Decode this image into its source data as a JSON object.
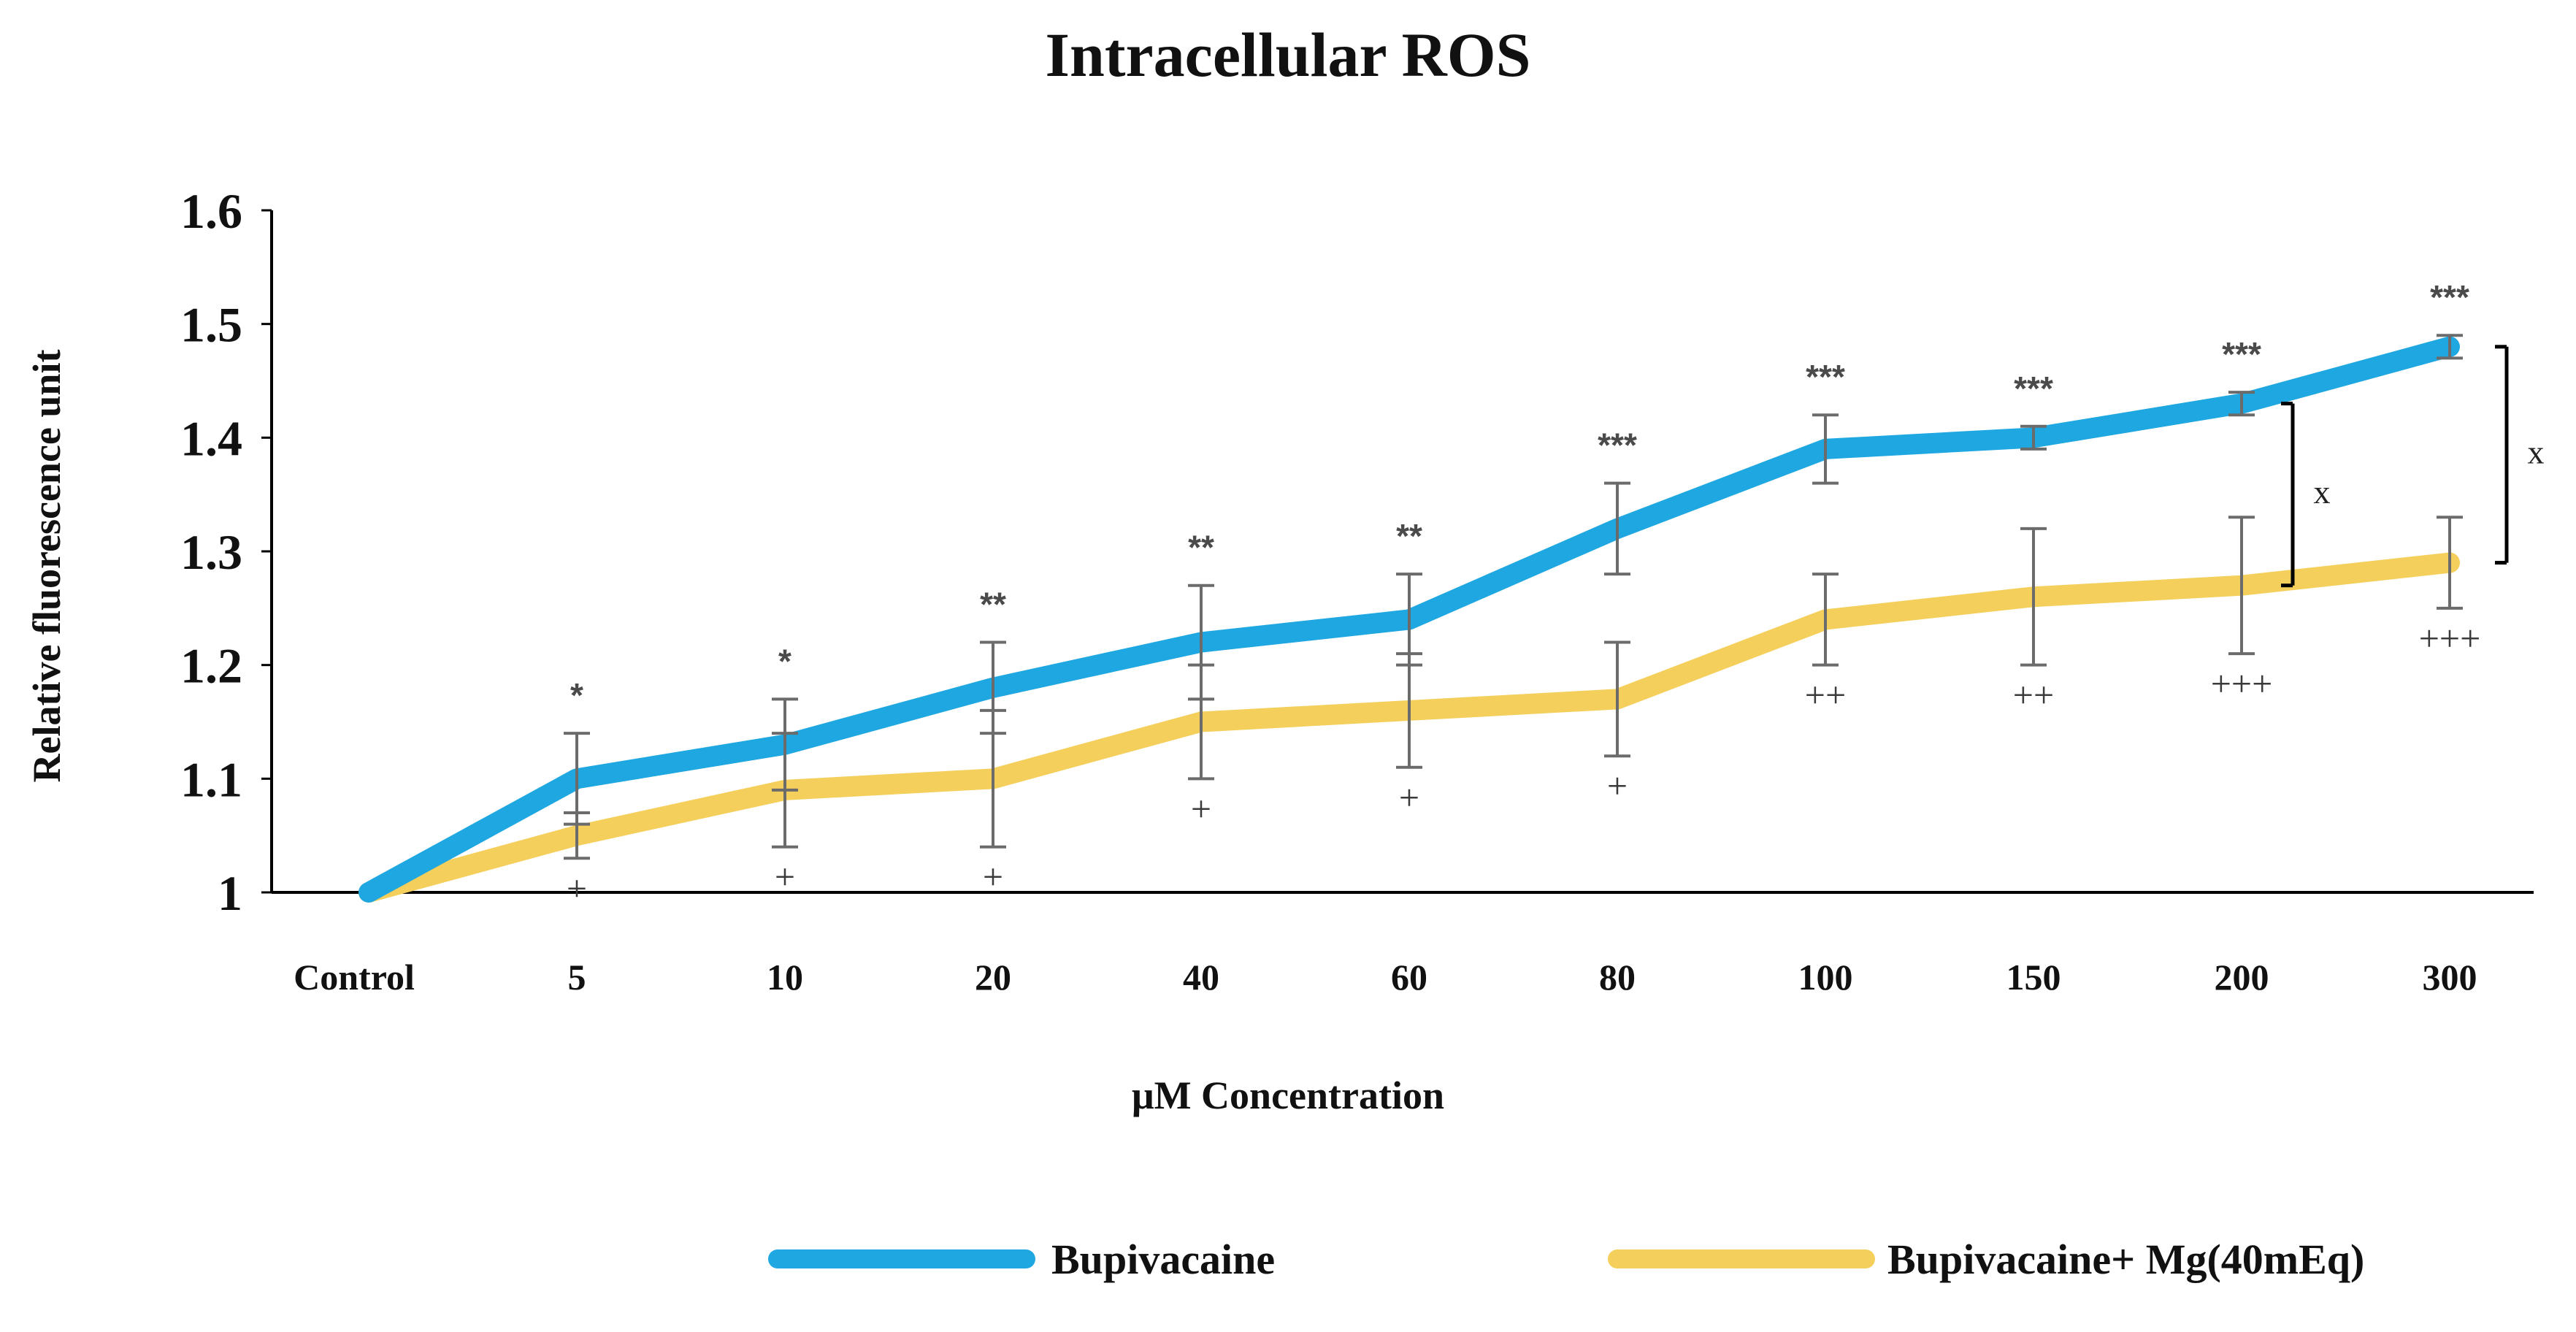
{
  "chart_data": {
    "type": "line",
    "title": "Intracellular ROS",
    "xlabel": "μM Concentration",
    "ylabel": "Relative fluorescence unit",
    "categories": [
      "Control",
      "5",
      "10",
      "20",
      "40",
      "60",
      "80",
      "100",
      "150",
      "200",
      "300"
    ],
    "ylim": [
      1,
      1.6
    ],
    "yticks": [
      "1",
      "1.1",
      "1.2",
      "1.3",
      "1.4",
      "1.5",
      "1.6"
    ],
    "series": [
      {
        "name": "Bupivacaine",
        "color": "#1ea7e1",
        "values": [
          1.0,
          1.1,
          1.13,
          1.18,
          1.22,
          1.24,
          1.32,
          1.39,
          1.4,
          1.43,
          1.48
        ],
        "errors": [
          0,
          0.04,
          0.04,
          0.04,
          0.05,
          0.04,
          0.04,
          0.03,
          0.01,
          0.01,
          0.01
        ],
        "annotations": [
          "",
          "*",
          "*",
          "**",
          "**",
          "**",
          "***",
          "***",
          "***",
          "***",
          "***"
        ]
      },
      {
        "name": "Bupivacaine+ Mg(40mEq)",
        "color": "#f5cf5b",
        "values": [
          1.0,
          1.05,
          1.09,
          1.1,
          1.15,
          1.16,
          1.17,
          1.24,
          1.26,
          1.27,
          1.29
        ],
        "errors": [
          0,
          0.02,
          0.05,
          0.06,
          0.05,
          0.05,
          0.05,
          0.04,
          0.06,
          0.06,
          0.04
        ],
        "annotations": [
          "",
          "+",
          "+",
          "+",
          "+",
          "+",
          "+",
          "++",
          "++",
          "+++",
          "+++"
        ]
      }
    ],
    "comparison_marks": [
      {
        "category": "200",
        "label": "x"
      },
      {
        "category": "300",
        "label": "x"
      }
    ],
    "legend_position": "bottom"
  }
}
